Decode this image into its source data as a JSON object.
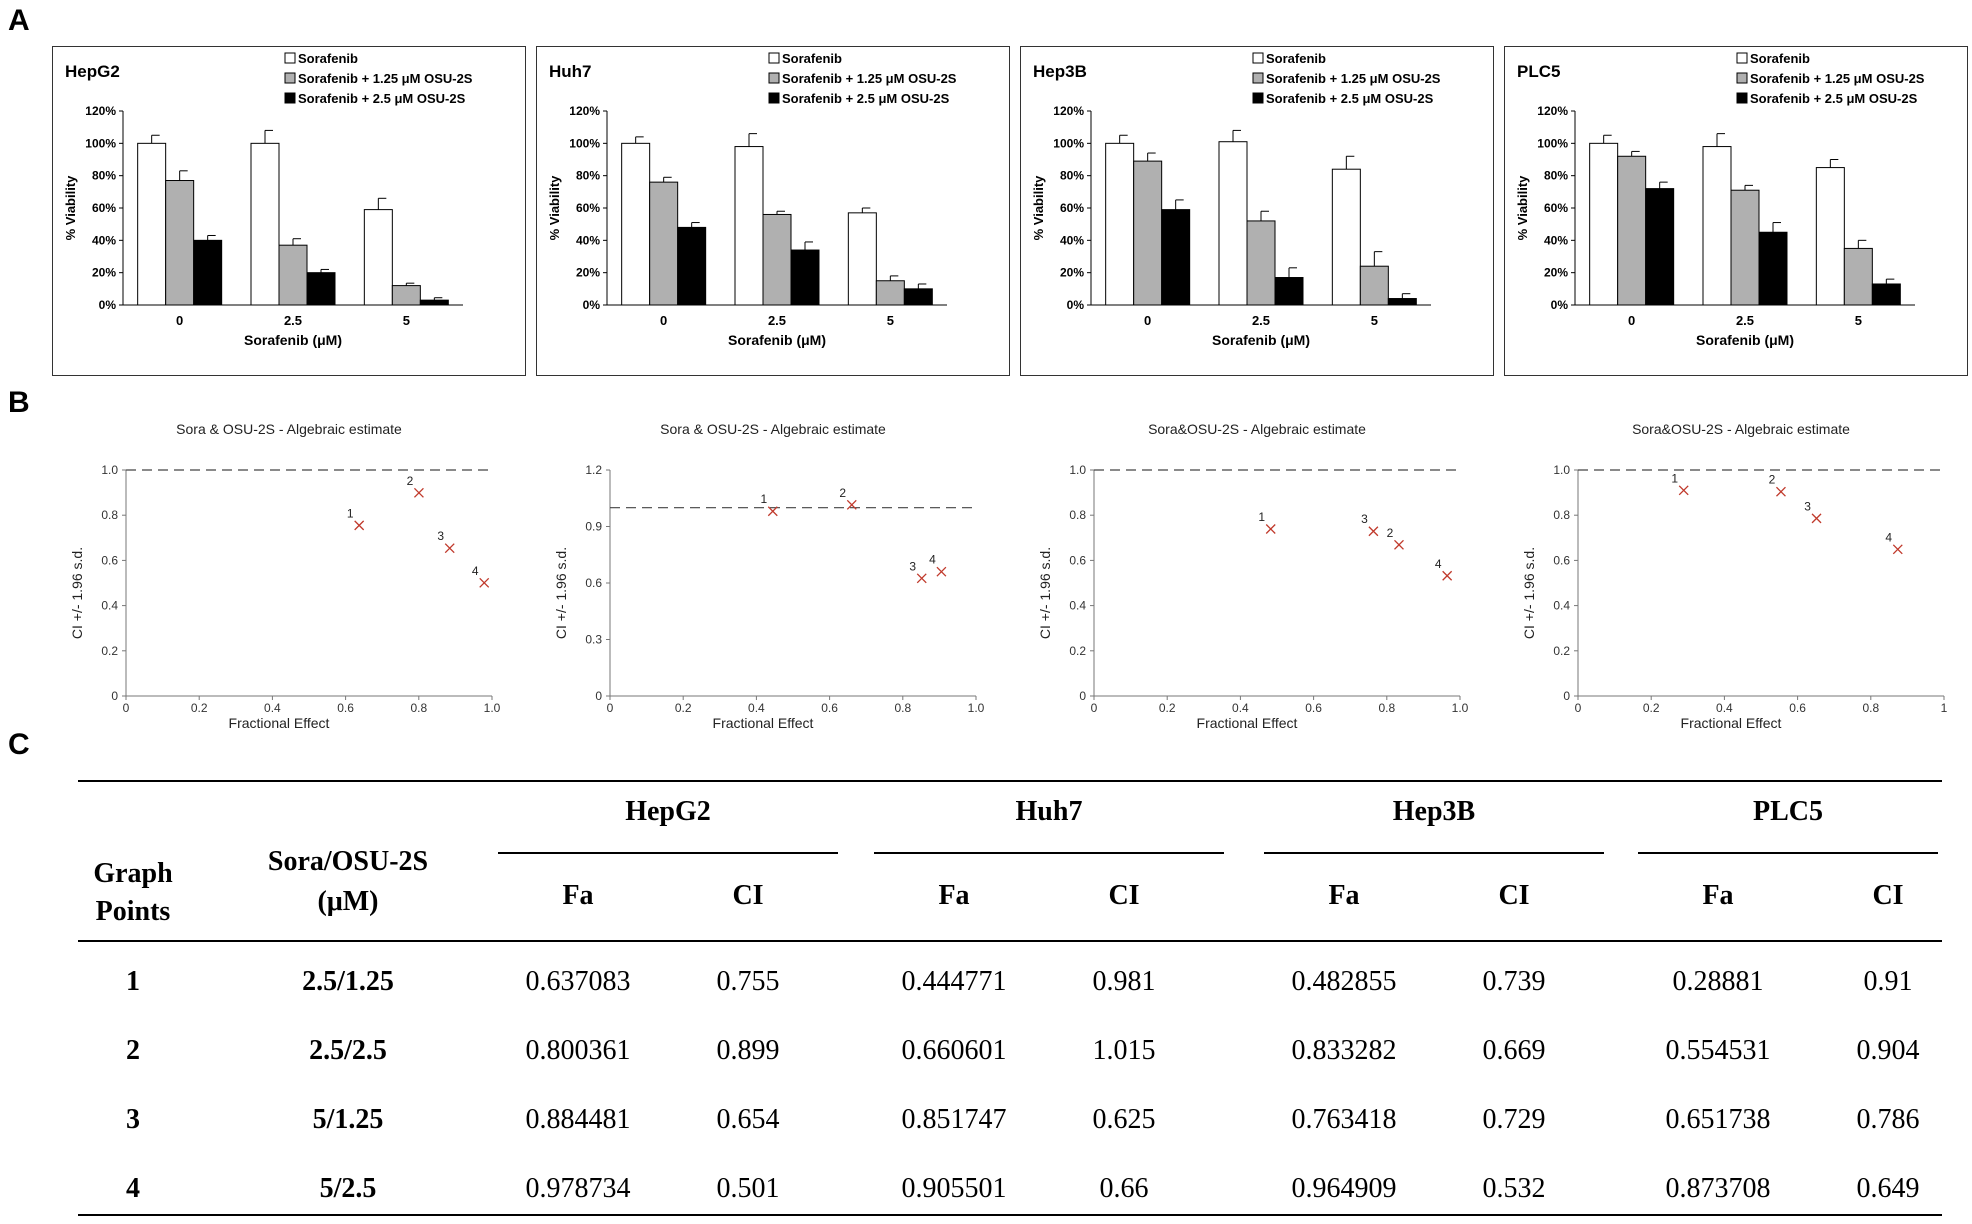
{
  "panel_labels": {
    "a": "A",
    "b": "B",
    "c": "C"
  },
  "chart_data": [
    {
      "type": "bar",
      "id": "HepG2",
      "title": "HepG2",
      "categories": [
        "0",
        "2.5",
        "5"
      ],
      "xlabel": "Sorafenib (μM)",
      "ylabel": "% Viability",
      "ylim": [
        0,
        120
      ],
      "yticks": [
        "0%",
        "20%",
        "40%",
        "60%",
        "80%",
        "100%",
        "120%"
      ],
      "series": [
        {
          "name": "Sorafenib",
          "color": "#ffffff",
          "values": [
            100,
            100,
            59
          ],
          "errors": [
            5,
            8,
            7
          ]
        },
        {
          "name": "Sorafenib + 1.25 μM OSU-2S",
          "color": "#b0b0b0",
          "values": [
            77,
            37,
            12
          ],
          "errors": [
            6,
            4,
            1.5
          ]
        },
        {
          "name": "Sorafenib + 2.5 μM  OSU-2S",
          "color": "#000000",
          "values": [
            40,
            20,
            3
          ],
          "errors": [
            3,
            2,
            1.5
          ]
        }
      ]
    },
    {
      "type": "bar",
      "id": "Huh7",
      "title": "Huh7",
      "categories": [
        "0",
        "2.5",
        "5"
      ],
      "xlabel": "Sorafenib (μM)",
      "ylabel": "% Viability",
      "ylim": [
        0,
        120
      ],
      "yticks": [
        "0%",
        "20%",
        "40%",
        "60%",
        "80%",
        "100%",
        "120%"
      ],
      "series": [
        {
          "name": "Sorafenib",
          "color": "#ffffff",
          "values": [
            100,
            98,
            57
          ],
          "errors": [
            4,
            8,
            3
          ]
        },
        {
          "name": "Sorafenib + 1.25 μM OSU-2S",
          "color": "#b0b0b0",
          "values": [
            76,
            56,
            15
          ],
          "errors": [
            3,
            2,
            3
          ]
        },
        {
          "name": "Sorafenib + 2.5 μM  OSU-2S",
          "color": "#000000",
          "values": [
            48,
            34,
            10
          ],
          "errors": [
            3,
            5,
            3
          ]
        }
      ]
    },
    {
      "type": "bar",
      "id": "Hep3B",
      "title": "Hep3B",
      "categories": [
        "0",
        "2.5",
        "5"
      ],
      "xlabel": "Sorafenib (μM)",
      "ylabel": "% Viability",
      "ylim": [
        0,
        120
      ],
      "yticks": [
        "0%",
        "20%",
        "40%",
        "60%",
        "80%",
        "100%",
        "120%"
      ],
      "series": [
        {
          "name": "Sorafenib",
          "color": "#ffffff",
          "values": [
            100,
            101,
            84
          ],
          "errors": [
            5,
            7,
            8
          ]
        },
        {
          "name": "Sorafenib + 1.25 μM OSU-2S",
          "color": "#b0b0b0",
          "values": [
            89,
            52,
            24
          ],
          "errors": [
            5,
            6,
            9
          ]
        },
        {
          "name": "Sorafenib + 2.5 μM  OSU-2S",
          "color": "#000000",
          "values": [
            59,
            17,
            4
          ],
          "errors": [
            6,
            6,
            3
          ]
        }
      ]
    },
    {
      "type": "bar",
      "id": "PLC5",
      "title": "PLC5",
      "categories": [
        "0",
        "2.5",
        "5"
      ],
      "xlabel": "Sorafenib (μM)",
      "ylabel": "% Viability",
      "ylim": [
        0,
        120
      ],
      "yticks": [
        "0%",
        "20%",
        "40%",
        "60%",
        "80%",
        "100%",
        "120%"
      ],
      "series": [
        {
          "name": "Sorafenib",
          "color": "#ffffff",
          "values": [
            100,
            98,
            85
          ],
          "errors": [
            5,
            8,
            5
          ]
        },
        {
          "name": "Sorafenib + 1.25 μM OSU-2S",
          "color": "#b0b0b0",
          "values": [
            92,
            71,
            35
          ],
          "errors": [
            3,
            3,
            5
          ]
        },
        {
          "name": "Sorafenib + 2.5 μM  OSU-2S",
          "color": "#000000",
          "values": [
            72,
            45,
            13
          ],
          "errors": [
            4,
            6,
            3
          ]
        }
      ]
    },
    {
      "type": "scatter",
      "id": "sc1",
      "title": "Sora & OSU-2S - Algebraic estimate",
      "xlabel": "Fractional Effect",
      "ylabel": "CI +/- 1.96 s.d.",
      "xlim": [
        0,
        1
      ],
      "ylim": [
        0,
        1.0
      ],
      "reference_line": 1.0,
      "xticks": [
        "0",
        "0.2",
        "0.4",
        "0.6",
        "0.8",
        "1.0"
      ],
      "yticks": [
        "0",
        "0.2",
        "0.4",
        "0.6",
        "0.8",
        "1.0"
      ],
      "points": [
        {
          "label": "1",
          "x": 0.637083,
          "y": 0.755
        },
        {
          "label": "2",
          "x": 0.800361,
          "y": 0.899
        },
        {
          "label": "3",
          "x": 0.884481,
          "y": 0.654
        },
        {
          "label": "4",
          "x": 0.978734,
          "y": 0.501
        }
      ]
    },
    {
      "type": "scatter",
      "id": "sc2",
      "title": "Sora & OSU-2S - Algebraic estimate",
      "xlabel": "Fractional Effect",
      "ylabel": "CI +/- 1.96 s.d.",
      "xlim": [
        0,
        1
      ],
      "ylim": [
        0,
        1.2
      ],
      "reference_line": 1.0,
      "xticks": [
        "0",
        "0.2",
        "0.4",
        "0.6",
        "0.8",
        "1.0"
      ],
      "yticks": [
        "0",
        "0.3",
        "0.6",
        "0.9",
        "1.2"
      ],
      "points": [
        {
          "label": "1",
          "x": 0.444771,
          "y": 0.981
        },
        {
          "label": "2",
          "x": 0.660601,
          "y": 1.015
        },
        {
          "label": "3",
          "x": 0.851747,
          "y": 0.625
        },
        {
          "label": "4",
          "x": 0.905501,
          "y": 0.66
        }
      ]
    },
    {
      "type": "scatter",
      "id": "sc3",
      "title": "Sora&OSU-2S - Algebraic estimate",
      "xlabel": "Fractional Effect",
      "ylabel": "CI +/- 1.96 s.d.",
      "xlim": [
        0,
        1
      ],
      "ylim": [
        0,
        1.0
      ],
      "reference_line": 1.0,
      "xticks": [
        "0",
        "0.2",
        "0.4",
        "0.6",
        "0.8",
        "1.0"
      ],
      "yticks": [
        "0",
        "0.2",
        "0.4",
        "0.6",
        "0.8",
        "1.0"
      ],
      "points": [
        {
          "label": "1",
          "x": 0.482855,
          "y": 0.739
        },
        {
          "label": "2",
          "x": 0.833282,
          "y": 0.669
        },
        {
          "label": "3",
          "x": 0.763418,
          "y": 0.729
        },
        {
          "label": "4",
          "x": 0.964909,
          "y": 0.532
        }
      ]
    },
    {
      "type": "scatter",
      "id": "sc4",
      "title": "Sora&OSU-2S - Algebraic estimate",
      "xlabel": "Fractional Effect",
      "ylabel": "CI +/- 1.96 s.d.",
      "xlim": [
        0,
        1
      ],
      "ylim": [
        0,
        1.0
      ],
      "reference_line": 1.0,
      "xticks": [
        "0",
        "0.2",
        "0.4",
        "0.6",
        "0.8",
        "1"
      ],
      "yticks": [
        "0",
        "0.2",
        "0.4",
        "0.6",
        "0.8",
        "1.0"
      ],
      "points": [
        {
          "label": "1",
          "x": 0.28881,
          "y": 0.91
        },
        {
          "label": "2",
          "x": 0.554531,
          "y": 0.904
        },
        {
          "label": "3",
          "x": 0.651738,
          "y": 0.786
        },
        {
          "label": "4",
          "x": 0.873708,
          "y": 0.649
        }
      ]
    }
  ],
  "table": {
    "col_graph_points": "Graph Points",
    "col_ratio": "Sora/OSU-2S (μM)",
    "groups": [
      "HepG2",
      "Huh7",
      "Hep3B",
      "PLC5"
    ],
    "sub_fa": "Fa",
    "sub_ci": "CI",
    "rows": [
      {
        "point": "1",
        "ratio": "2.5/1.25",
        "cells": [
          "0.637083",
          "0.755",
          "0.444771",
          "0.981",
          "0.482855",
          "0.739",
          "0.28881",
          "0.91"
        ]
      },
      {
        "point": "2",
        "ratio": "2.5/2.5",
        "cells": [
          "0.800361",
          "0.899",
          "0.660601",
          "1.015",
          "0.833282",
          "0.669",
          "0.554531",
          "0.904"
        ]
      },
      {
        "point": "3",
        "ratio": "5/1.25",
        "cells": [
          "0.884481",
          "0.654",
          "0.851747",
          "0.625",
          "0.763418",
          "0.729",
          "0.651738",
          "0.786"
        ]
      },
      {
        "point": "4",
        "ratio": "5/2.5",
        "cells": [
          "0.978734",
          "0.501",
          "0.905501",
          "0.66",
          "0.964909",
          "0.532",
          "0.873708",
          "0.649"
        ]
      }
    ]
  }
}
